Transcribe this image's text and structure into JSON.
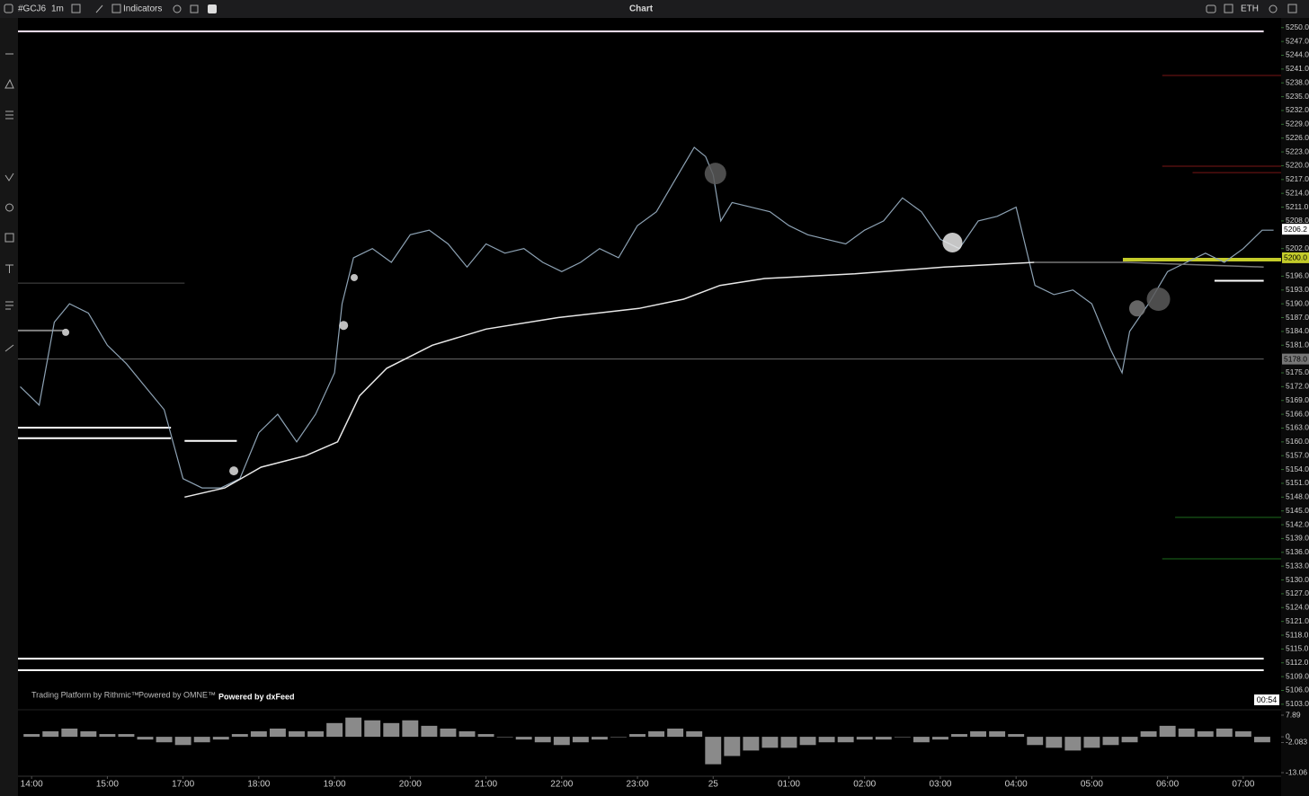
{
  "toolbar": {
    "symbol": "#GCJ6",
    "interval": "1m",
    "indicators": "Indicators",
    "title": "Chart",
    "session": "ETH"
  },
  "footer": {
    "rithmic": "Trading Platform by Rithmic™",
    "omne": "Powered by OMNE™",
    "dxfeed": "Powered by dxFeed"
  },
  "timer": "00:54",
  "chart_data": [
    {
      "type": "line",
      "xlim": [
        -0.18,
        16.5
      ],
      "xticks": [
        {
          "value": 0,
          "label": "14:00"
        },
        {
          "value": 1,
          "label": "15:00"
        },
        {
          "value": 2,
          "label": "17:00"
        },
        {
          "value": 3,
          "label": "18:00"
        },
        {
          "value": 4,
          "label": "19:00"
        },
        {
          "value": 5,
          "label": "20:00"
        },
        {
          "value": 6,
          "label": "21:00"
        },
        {
          "value": 7,
          "label": "22:00"
        },
        {
          "value": 8,
          "label": "23:00"
        },
        {
          "value": 9,
          "label": "25"
        },
        {
          "value": 10,
          "label": "01:00"
        },
        {
          "value": 11,
          "label": "02:00"
        },
        {
          "value": 12,
          "label": "03:00"
        },
        {
          "value": 13,
          "label": "04:00"
        },
        {
          "value": 14,
          "label": "05:00"
        },
        {
          "value": 15,
          "label": "06:00"
        },
        {
          "value": 16,
          "label": "07:00"
        }
      ],
      "ylim": [
        5101.8,
        5252.1
      ],
      "yticks": [
        {
          "value": 5250,
          "label": "5250.0"
        },
        {
          "value": 5247,
          "label": "5247.0"
        },
        {
          "value": 5244,
          "label": "5244.0"
        },
        {
          "value": 5241,
          "label": "5241.0"
        },
        {
          "value": 5238,
          "label": "5238.0"
        },
        {
          "value": 5235,
          "label": "5235.0"
        },
        {
          "value": 5232,
          "label": "5232.0"
        },
        {
          "value": 5229,
          "label": "5229.0"
        },
        {
          "value": 5226,
          "label": "5226.0"
        },
        {
          "value": 5223,
          "label": "5223.0"
        },
        {
          "value": 5220,
          "label": "5220.0"
        },
        {
          "value": 5217,
          "label": "5217.0"
        },
        {
          "value": 5214,
          "label": "5214.0"
        },
        {
          "value": 5211,
          "label": "5211.0"
        },
        {
          "value": 5208,
          "label": "5208.0"
        },
        {
          "value": 5202,
          "label": "5202.0"
        },
        {
          "value": 5196,
          "label": "5196.0"
        },
        {
          "value": 5193,
          "label": "5193.0"
        },
        {
          "value": 5190,
          "label": "5190.0"
        },
        {
          "value": 5187,
          "label": "5187.0"
        },
        {
          "value": 5184,
          "label": "5184.0"
        },
        {
          "value": 5181,
          "label": "5181.0"
        },
        {
          "value": 5175,
          "label": "5175.0"
        },
        {
          "value": 5172,
          "label": "5172.0"
        },
        {
          "value": 5169,
          "label": "5169.0"
        },
        {
          "value": 5166,
          "label": "5166.0"
        },
        {
          "value": 5163,
          "label": "5163.0"
        },
        {
          "value": 5160,
          "label": "5160.0"
        },
        {
          "value": 5157,
          "label": "5157.0"
        },
        {
          "value": 5154,
          "label": "5154.0"
        },
        {
          "value": 5151,
          "label": "5151.0"
        },
        {
          "value": 5148,
          "label": "5148.0"
        },
        {
          "value": 5145,
          "label": "5145.0"
        },
        {
          "value": 5142,
          "label": "5142.0"
        },
        {
          "value": 5139,
          "label": "5139.0"
        },
        {
          "value": 5136,
          "label": "5136.0"
        },
        {
          "value": 5133,
          "label": "5133.0"
        },
        {
          "value": 5130,
          "label": "5130.0"
        },
        {
          "value": 5127,
          "label": "5127.0"
        },
        {
          "value": 5124,
          "label": "5124.0"
        },
        {
          "value": 5121,
          "label": "5121.0"
        },
        {
          "value": 5118,
          "label": "5118.0"
        },
        {
          "value": 5115,
          "label": "5115.0"
        },
        {
          "value": 5112,
          "label": "5112.0"
        },
        {
          "value": 5109,
          "label": "5109.0"
        },
        {
          "value": 5106,
          "label": "5106.0"
        },
        {
          "value": 5103,
          "label": "5103.0"
        }
      ],
      "series": [
        {
          "color": "#8da2b4",
          "x": [
            -0.15,
            0.1,
            0.3,
            0.5,
            0.75,
            1,
            1.25,
            1.5,
            1.75,
            2,
            2.25,
            2.5,
            2.75,
            3,
            3.25,
            3.5,
            3.75,
            4,
            4.1,
            4.25,
            4.5,
            4.75,
            5,
            5.25,
            5.5,
            5.75,
            6,
            6.25,
            6.5,
            6.75,
            7,
            7.25,
            7.5,
            7.75,
            8,
            8.25,
            8.5,
            8.75,
            8.9,
            9,
            9.1,
            9.25,
            9.5,
            9.75,
            10,
            10.25,
            10.5,
            10.75,
            11,
            11.25,
            11.5,
            11.75,
            12,
            12.25,
            12.5,
            12.75,
            13,
            13.25,
            13.5,
            13.75,
            14,
            14.25,
            14.4,
            14.5,
            14.75,
            15,
            15.25,
            15.5,
            15.75,
            16,
            16.25,
            16.4
          ],
          "values": [
            5172,
            5168,
            5186,
            5190,
            5188,
            5181,
            5177,
            5172,
            5167,
            5152,
            5150,
            5150,
            5152,
            5162,
            5166,
            5160,
            5166,
            5175,
            5190,
            5200,
            5202,
            5199,
            5205,
            5206,
            5203,
            5198,
            5203,
            5201,
            5202,
            5199,
            5197,
            5199,
            5202,
            5200,
            5207,
            5210,
            5217,
            5224,
            5222,
            5218,
            5208,
            5212,
            5211,
            5210,
            5207,
            5205,
            5204,
            5203,
            5206,
            5208,
            5213,
            5210,
            5204,
            5202,
            5208,
            5209,
            5211,
            5194,
            5192,
            5193,
            5190,
            5180,
            5175,
            5184,
            5190,
            5197,
            5199,
            5201,
            5199,
            5202,
            5206,
            5206
          ]
        },
        {
          "color": "#e8e8e8",
          "x": [
            2.02,
            2.55,
            3.03,
            3.62,
            4.04,
            4.33,
            4.69,
            5.29,
            6,
            6.95,
            8.02,
            8.61,
            9.09,
            9.68,
            10.87,
            12.05,
            13.24
          ],
          "values": [
            5148,
            5150,
            5154.5,
            5157,
            5160,
            5170,
            5176,
            5181,
            5184.5,
            5187,
            5189,
            5191,
            5194,
            5195.5,
            5196.5,
            5198,
            5199
          ]
        },
        {
          "color": "#777777",
          "x": [
            13.24,
            14.43,
            16.27
          ],
          "values": [
            5199,
            5199,
            5198
          ]
        }
      ],
      "levels": [
        {
          "value": 5249.2,
          "color": "#f4e6f4",
          "from": -0.18,
          "to": 16.27
        },
        {
          "value": 5112.9,
          "color": "#ffffff",
          "from": -0.18,
          "to": 16.27
        },
        {
          "value": 5110.4,
          "color": "#ffffff",
          "from": -0.18,
          "to": 16.27
        },
        {
          "value": 5163.1,
          "color": "#ffffff",
          "from": -0.18,
          "to": 1.84
        },
        {
          "value": 5160.8,
          "color": "#ffffff",
          "from": -0.18,
          "to": 1.84
        },
        {
          "value": 5160.2,
          "color": "#ffffff",
          "from": 2.02,
          "to": 2.71
        },
        {
          "value": 5178,
          "color": "#6a6a6a",
          "from": -0.18,
          "to": 16.27
        },
        {
          "value": 5184.2,
          "color": "#808080",
          "from": -0.18,
          "to": 0.42
        },
        {
          "value": 5194.5,
          "color": "#4a4a4a",
          "from": -0.18,
          "to": 2.02
        },
        {
          "value": 5199.6,
          "color": "#c4cc2a",
          "from": 14.41,
          "to": 16.5
        },
        {
          "value": 5195,
          "color": "#ffffff",
          "from": 15.62,
          "to": 16.27
        },
        {
          "value": 5239.6,
          "color": "#7a1616",
          "from": 14.93,
          "to": 16.5
        },
        {
          "value": 5219.9,
          "color": "#7a1616",
          "from": 14.93,
          "to": 16.5
        },
        {
          "value": 5218.5,
          "color": "#7a1616",
          "from": 15.33,
          "to": 16.5
        },
        {
          "value": 5143.6,
          "color": "#1d6b1d",
          "from": 15.1,
          "to": 16.5
        },
        {
          "value": 5134.6,
          "color": "#1d6b1d",
          "from": 14.93,
          "to": 16.5
        }
      ],
      "bubbles": [
        {
          "x": 0.45,
          "price": 5183.8,
          "size": 4,
          "color": "#e0e0e0"
        },
        {
          "x": 2.67,
          "price": 5153.7,
          "size": 5,
          "color": "#e0e0e0"
        },
        {
          "x": 4.12,
          "price": 5185.3,
          "size": 5,
          "color": "#e0e0e0"
        },
        {
          "x": 4.26,
          "price": 5195.7,
          "size": 4,
          "color": "#e0e0e0"
        },
        {
          "x": 9.03,
          "price": 5218.3,
          "size": 12,
          "color": "#5a5a5a"
        },
        {
          "x": 12.16,
          "price": 5203.3,
          "size": 11,
          "color": "#e8e8e8"
        },
        {
          "x": 14.6,
          "price": 5189,
          "size": 9,
          "color": "#777777"
        },
        {
          "x": 14.88,
          "price": 5191,
          "size": 13,
          "color": "#5a5a5a"
        }
      ],
      "price_tags": [
        {
          "value": 5206.2,
          "label": "5206.2",
          "color": "#ffffff"
        },
        {
          "value": 5200,
          "label": "5200.0",
          "color": "#c4cc2a"
        },
        {
          "value": 5178,
          "label": "5178.0",
          "color": "#777777"
        }
      ]
    },
    {
      "type": "bar",
      "color": "#8a8a8a",
      "ylim": [
        -13.06,
        7.89
      ],
      "yticks": [
        7.89,
        0,
        -2.083,
        -13.06
      ],
      "x": [
        0,
        0.25,
        0.5,
        0.75,
        1,
        1.25,
        1.5,
        1.75,
        2,
        2.25,
        2.5,
        2.75,
        3,
        3.25,
        3.5,
        3.75,
        4,
        4.25,
        4.5,
        4.75,
        5,
        5.25,
        5.5,
        5.75,
        6,
        6.25,
        6.5,
        6.75,
        7,
        7.25,
        7.5,
        7.75,
        8,
        8.25,
        8.5,
        8.75,
        9,
        9.25,
        9.5,
        9.75,
        10,
        10.25,
        10.5,
        10.75,
        11,
        11.25,
        11.5,
        11.75,
        12,
        12.25,
        12.5,
        12.75,
        13,
        13.25,
        13.5,
        13.75,
        14,
        14.25,
        14.5,
        14.75,
        15,
        15.25,
        15.5,
        15.75,
        16,
        16.25
      ],
      "values": [
        1,
        2,
        3,
        2,
        1,
        1,
        -1,
        -2,
        -3,
        -2,
        -1,
        1,
        2,
        3,
        2,
        2,
        5,
        7,
        6,
        5,
        6,
        4,
        3,
        2,
        1,
        0,
        -1,
        -2,
        -3,
        -2,
        -1,
        0,
        1,
        2,
        3,
        2,
        -10,
        -7,
        -5,
        -4,
        -4,
        -3,
        -2,
        -2,
        -1,
        -1,
        0,
        -2,
        -1,
        1,
        2,
        2,
        1,
        -3,
        -4,
        -5,
        -4,
        -3,
        -2,
        2,
        4,
        3,
        2,
        3,
        2,
        -2
      ]
    }
  ]
}
